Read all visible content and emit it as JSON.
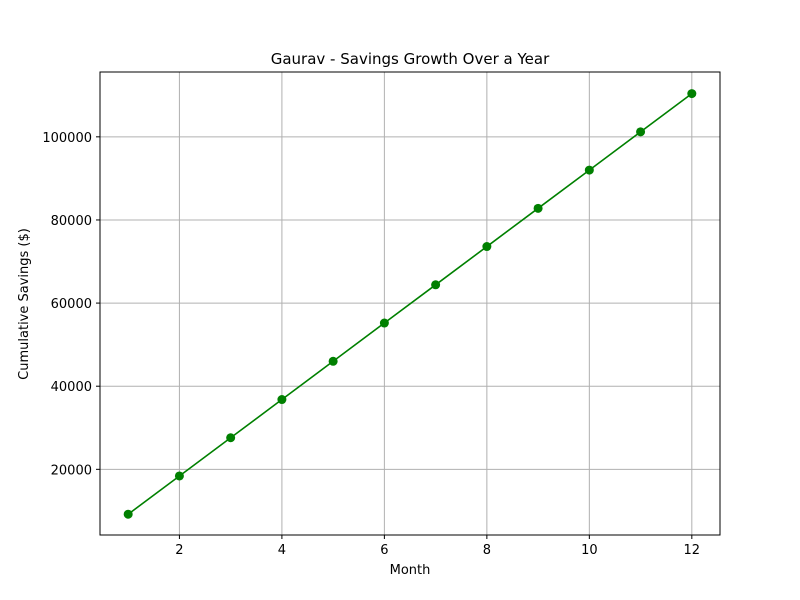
{
  "chart_data": {
    "type": "line",
    "title": "Gaurav - Savings Growth Over a Year",
    "xlabel": "Month",
    "ylabel": "Cumulative Savings ($)",
    "xlim": [
      0.45,
      12.55
    ],
    "ylim": [
      4200,
      115600
    ],
    "xticks": [
      2,
      4,
      6,
      8,
      10,
      12
    ],
    "yticks": [
      20000,
      40000,
      60000,
      80000,
      100000
    ],
    "grid": true,
    "series": [
      {
        "color": "#008000",
        "marker": "circle",
        "x": [
          1,
          2,
          3,
          4,
          5,
          6,
          7,
          8,
          9,
          10,
          11,
          12
        ],
        "y": [
          9200,
          18400,
          27600,
          36800,
          46000,
          55200,
          64400,
          73600,
          82800,
          92000,
          101200,
          110400
        ]
      }
    ]
  }
}
